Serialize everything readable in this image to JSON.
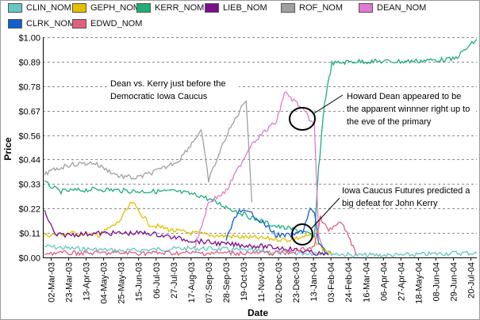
{
  "chart_data": {
    "type": "line",
    "title": "",
    "xlabel": "Date",
    "ylabel": "Price",
    "ylim": [
      0,
      1.0
    ],
    "y_ticks": [
      "$0.00",
      "$0.11",
      "$0.22",
      "$0.33",
      "$0.44",
      "$0.56",
      "$0.67",
      "$0.78",
      "$0.89",
      "$1.00"
    ],
    "x_ticks": [
      "02-Mar-03",
      "23-Mar-03",
      "13-Apr-03",
      "04-May-03",
      "25-May-03",
      "15-Jun-03",
      "06-Jul-03",
      "27-Jul-03",
      "17-Aug-03",
      "07-Sep-03",
      "28-Sep-03",
      "19-Oct-03",
      "11-Nov-03",
      "02-Dec-03",
      "23-Dec-03",
      "13-Jan-04",
      "03-Feb-04",
      "24-Feb-04",
      "16-Mar-04",
      "06-Apr-04",
      "27-Apr-04",
      "18-May-04",
      "08-Jun-04",
      "29-Jun-04",
      "20-Jul-04"
    ],
    "grid": "horizontal dashed",
    "legend_position": "top",
    "series": [
      {
        "name": "CLIN_NOM",
        "color": "#66c6c6",
        "x": [
          "2003-02-25",
          "2003-04-01",
          "2003-06-01",
          "2003-08-01",
          "2003-09-15",
          "2003-11-01",
          "2003-12-15",
          "2004-01-10",
          "2004-02-01",
          "2004-03-01",
          "2004-05-01",
          "2004-07-01",
          "2004-07-28"
        ],
        "y": [
          0.05,
          0.04,
          0.03,
          0.04,
          0.04,
          0.03,
          0.02,
          0.02,
          0.02,
          0.01,
          0.01,
          0.02,
          0.02
        ]
      },
      {
        "name": "GEPH_NOM",
        "color": "#e2c000",
        "x": [
          "2003-02-25",
          "2003-04-01",
          "2003-05-01",
          "2003-05-25",
          "2003-06-10",
          "2003-07-01",
          "2003-08-01",
          "2003-09-15",
          "2003-11-01",
          "2003-12-15",
          "2004-01-10",
          "2004-01-25",
          "2004-02-05"
        ],
        "y": [
          0.1,
          0.11,
          0.1,
          0.16,
          0.25,
          0.15,
          0.12,
          0.1,
          0.09,
          0.08,
          0.1,
          0.04,
          0.02
        ]
      },
      {
        "name": "KERR_NOM",
        "color": "#1fae78",
        "x": [
          "2003-02-25",
          "2003-03-15",
          "2003-05-01",
          "2003-06-15",
          "2003-08-01",
          "2003-09-01",
          "2003-10-01",
          "2003-11-01",
          "2003-12-01",
          "2004-01-01",
          "2004-01-15",
          "2004-01-20",
          "2004-01-27",
          "2004-02-05",
          "2004-03-01",
          "2004-05-01",
          "2004-07-01",
          "2004-07-28"
        ],
        "y": [
          0.34,
          0.3,
          0.31,
          0.3,
          0.3,
          0.28,
          0.23,
          0.18,
          0.14,
          0.12,
          0.09,
          0.4,
          0.7,
          0.88,
          0.89,
          0.89,
          0.9,
          0.99
        ]
      },
      {
        "name": "LIEB_NOM",
        "color": "#7c0e8e",
        "x": [
          "2003-02-25",
          "2003-03-10",
          "2003-05-01",
          "2003-07-01",
          "2003-08-15",
          "2003-10-01",
          "2003-11-15",
          "2003-12-15",
          "2004-01-15",
          "2004-02-01"
        ],
        "y": [
          0.21,
          0.1,
          0.11,
          0.11,
          0.08,
          0.06,
          0.05,
          0.04,
          0.02,
          0.01
        ]
      },
      {
        "name": "ROF_NOM",
        "color": "#a0a0a0",
        "x": [
          "2003-02-25",
          "2003-03-25",
          "2003-04-25",
          "2003-05-25",
          "2003-06-15",
          "2003-07-15",
          "2003-08-05",
          "2003-08-25",
          "2003-09-01",
          "2003-09-10",
          "2003-10-01",
          "2003-10-25",
          "2003-11-01"
        ],
        "y": [
          0.38,
          0.42,
          0.43,
          0.37,
          0.36,
          0.4,
          0.44,
          0.54,
          0.58,
          0.35,
          0.55,
          0.72,
          0.25
        ]
      },
      {
        "name": "DEAN_NOM",
        "color": "#e07ad0",
        "x": [
          "2003-08-25",
          "2003-09-10",
          "2003-10-01",
          "2003-11-01",
          "2003-12-01",
          "2003-12-10",
          "2003-12-25",
          "2004-01-05",
          "2004-01-15",
          "2004-01-20",
          "2004-01-25"
        ],
        "y": [
          0.05,
          0.25,
          0.3,
          0.52,
          0.62,
          0.75,
          0.7,
          0.65,
          0.6,
          0.1,
          0.05
        ]
      },
      {
        "name": "CLRK_NOM",
        "color": "#1060c8",
        "x": [
          "2003-10-01",
          "2003-10-15",
          "2003-11-01",
          "2003-12-01",
          "2003-12-20",
          "2004-01-01",
          "2004-01-10",
          "2004-01-15",
          "2004-01-20",
          "2004-01-28"
        ],
        "y": [
          0.08,
          0.21,
          0.2,
          0.1,
          0.1,
          0.12,
          0.22,
          0.2,
          0.07,
          0.02
        ]
      },
      {
        "name": "EDWD_NOM",
        "color": "#e06080",
        "x": [
          "2003-02-25",
          "2003-06-01",
          "2003-10-01",
          "2003-12-15",
          "2004-01-15",
          "2004-01-22",
          "2004-02-01",
          "2004-02-15",
          "2004-02-25",
          "2004-03-05"
        ],
        "y": [
          0.02,
          0.02,
          0.02,
          0.02,
          0.05,
          0.18,
          0.12,
          0.16,
          0.1,
          0.01
        ]
      }
    ],
    "annotations": [
      {
        "text": [
          "Dean vs. Kerry just before the",
          "Democratic Iowa Caucus"
        ]
      },
      {
        "text": [
          "Howard Dean appeared to be",
          "the apparent winnner right up to",
          "the eve of the primary"
        ]
      },
      {
        "text": [
          "Iowa Caucus Futures predicted a",
          "big defeat for John Kerry"
        ]
      }
    ]
  }
}
